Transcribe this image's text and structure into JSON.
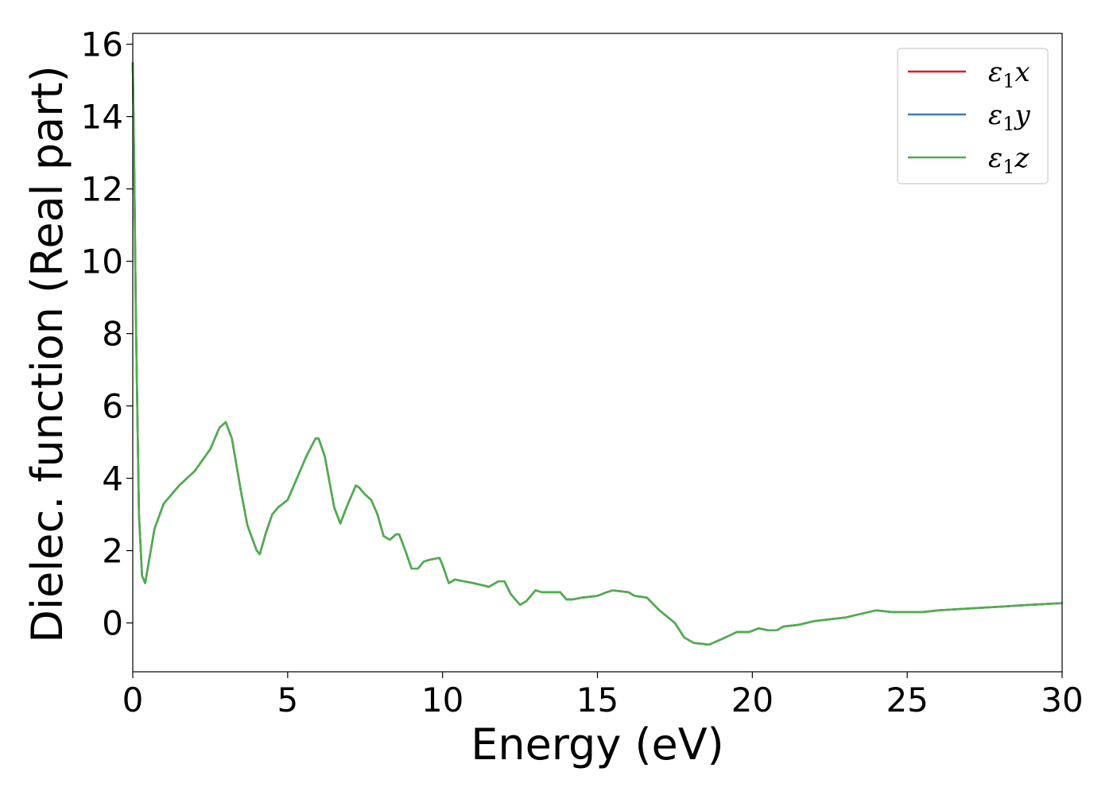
{
  "chart_data": {
    "type": "line",
    "title": "",
    "xlabel": "Energy (eV)",
    "ylabel": "Dielec. function (Real part)",
    "xlim": [
      0,
      30
    ],
    "ylim": [
      -1.35,
      16.3
    ],
    "xticks": [
      0,
      5,
      10,
      15,
      20,
      25,
      30
    ],
    "yticks": [
      0,
      2,
      4,
      6,
      8,
      10,
      12,
      14,
      16
    ],
    "grid": false,
    "legend_position": "top-right",
    "series": [
      {
        "name": "ε1x",
        "legend_main": "ε",
        "legend_sub": "1",
        "legend_var": "x",
        "color": "#e41a1c",
        "x": [
          0,
          0.05,
          0.1,
          0.2,
          0.3,
          0.4,
          0.5,
          0.7,
          1,
          1.5,
          2,
          2.5,
          2.8,
          3,
          3.2,
          3.5,
          3.7,
          4,
          4.1,
          4.3,
          4.5,
          4.7,
          5,
          5.3,
          5.6,
          5.9,
          6,
          6.2,
          6.5,
          6.7,
          6.9,
          7.2,
          7.3,
          7.5,
          7.7,
          7.9,
          8.1,
          8.3,
          8.5,
          8.6,
          8.8,
          9,
          9.2,
          9.4,
          9.6,
          9.9,
          10,
          10.2,
          10.4,
          10.7,
          11,
          11.5,
          11.8,
          12,
          12.2,
          12.5,
          12.7,
          13,
          13.2,
          13.5,
          13.8,
          14,
          14.2,
          14.5,
          15,
          15.3,
          15.5,
          16,
          16.2,
          16.6,
          17,
          17.5,
          17.8,
          18.1,
          18.6,
          19,
          19.5,
          19.9,
          20.2,
          20.5,
          20.8,
          21,
          21.5,
          22,
          23,
          23.5,
          24,
          24.5,
          25,
          25.5,
          26,
          27,
          28,
          29,
          30
        ],
        "values": [
          15.5,
          12.5,
          8.5,
          3.0,
          1.3,
          1.1,
          1.6,
          2.6,
          3.3,
          3.8,
          4.2,
          4.8,
          5.4,
          5.55,
          5.1,
          3.6,
          2.7,
          2.0,
          1.9,
          2.5,
          3.0,
          3.2,
          3.4,
          4.0,
          4.6,
          5.1,
          5.1,
          4.6,
          3.2,
          2.75,
          3.2,
          3.8,
          3.75,
          3.55,
          3.4,
          3.0,
          2.4,
          2.3,
          2.45,
          2.45,
          2.0,
          1.5,
          1.5,
          1.7,
          1.75,
          1.8,
          1.6,
          1.1,
          1.2,
          1.15,
          1.1,
          1.0,
          1.15,
          1.15,
          0.8,
          0.5,
          0.6,
          0.9,
          0.85,
          0.85,
          0.85,
          0.65,
          0.65,
          0.7,
          0.75,
          0.85,
          0.9,
          0.85,
          0.75,
          0.7,
          0.35,
          0.0,
          -0.4,
          -0.55,
          -0.6,
          -0.45,
          -0.25,
          -0.25,
          -0.15,
          -0.2,
          -0.2,
          -0.1,
          -0.05,
          0.05,
          0.15,
          0.25,
          0.35,
          0.3,
          0.3,
          0.3,
          0.35,
          0.4,
          0.45,
          0.5,
          0.55
        ]
      },
      {
        "name": "ε1y",
        "legend_main": "ε",
        "legend_sub": "1",
        "legend_var": "y",
        "color": "#377eb8",
        "x": [
          0,
          0.05,
          0.1,
          0.2,
          0.3,
          0.4,
          0.5,
          0.7,
          1,
          1.5,
          2,
          2.5,
          2.8,
          3,
          3.2,
          3.5,
          3.7,
          4,
          4.1,
          4.3,
          4.5,
          4.7,
          5,
          5.3,
          5.6,
          5.9,
          6,
          6.2,
          6.5,
          6.7,
          6.9,
          7.2,
          7.3,
          7.5,
          7.7,
          7.9,
          8.1,
          8.3,
          8.5,
          8.6,
          8.8,
          9,
          9.2,
          9.4,
          9.6,
          9.9,
          10,
          10.2,
          10.4,
          10.7,
          11,
          11.5,
          11.8,
          12,
          12.2,
          12.5,
          12.7,
          13,
          13.2,
          13.5,
          13.8,
          14,
          14.2,
          14.5,
          15,
          15.3,
          15.5,
          16,
          16.2,
          16.6,
          17,
          17.5,
          17.8,
          18.1,
          18.6,
          19,
          19.5,
          19.9,
          20.2,
          20.5,
          20.8,
          21,
          21.5,
          22,
          23,
          23.5,
          24,
          24.5,
          25,
          25.5,
          26,
          27,
          28,
          29,
          30
        ],
        "values": [
          15.5,
          12.5,
          8.5,
          3.0,
          1.3,
          1.1,
          1.6,
          2.6,
          3.3,
          3.8,
          4.2,
          4.8,
          5.4,
          5.55,
          5.1,
          3.6,
          2.7,
          2.0,
          1.9,
          2.5,
          3.0,
          3.2,
          3.4,
          4.0,
          4.6,
          5.1,
          5.1,
          4.6,
          3.2,
          2.75,
          3.2,
          3.8,
          3.75,
          3.55,
          3.4,
          3.0,
          2.4,
          2.3,
          2.45,
          2.45,
          2.0,
          1.5,
          1.5,
          1.7,
          1.75,
          1.8,
          1.6,
          1.1,
          1.2,
          1.15,
          1.1,
          1.0,
          1.15,
          1.15,
          0.8,
          0.5,
          0.6,
          0.9,
          0.85,
          0.85,
          0.85,
          0.65,
          0.65,
          0.7,
          0.75,
          0.85,
          0.9,
          0.85,
          0.75,
          0.7,
          0.35,
          0.0,
          -0.4,
          -0.55,
          -0.6,
          -0.45,
          -0.25,
          -0.25,
          -0.15,
          -0.2,
          -0.2,
          -0.1,
          -0.05,
          0.05,
          0.15,
          0.25,
          0.35,
          0.3,
          0.3,
          0.3,
          0.35,
          0.4,
          0.45,
          0.5,
          0.55
        ]
      },
      {
        "name": "ε1z",
        "legend_main": "ε",
        "legend_sub": "1",
        "legend_var": "z",
        "color": "#4daf4a",
        "x": [
          0,
          0.05,
          0.1,
          0.2,
          0.3,
          0.4,
          0.5,
          0.7,
          1,
          1.5,
          2,
          2.5,
          2.8,
          3,
          3.2,
          3.5,
          3.7,
          4,
          4.1,
          4.3,
          4.5,
          4.7,
          5,
          5.3,
          5.6,
          5.9,
          6,
          6.2,
          6.5,
          6.7,
          6.9,
          7.2,
          7.3,
          7.5,
          7.7,
          7.9,
          8.1,
          8.3,
          8.5,
          8.6,
          8.8,
          9,
          9.2,
          9.4,
          9.6,
          9.9,
          10,
          10.2,
          10.4,
          10.7,
          11,
          11.5,
          11.8,
          12,
          12.2,
          12.5,
          12.7,
          13,
          13.2,
          13.5,
          13.8,
          14,
          14.2,
          14.5,
          15,
          15.3,
          15.5,
          16,
          16.2,
          16.6,
          17,
          17.5,
          17.8,
          18.1,
          18.6,
          19,
          19.5,
          19.9,
          20.2,
          20.5,
          20.8,
          21,
          21.5,
          22,
          23,
          23.5,
          24,
          24.5,
          25,
          25.5,
          26,
          27,
          28,
          29,
          30
        ],
        "values": [
          15.5,
          12.5,
          8.5,
          3.0,
          1.3,
          1.1,
          1.6,
          2.6,
          3.3,
          3.8,
          4.2,
          4.8,
          5.4,
          5.55,
          5.1,
          3.6,
          2.7,
          2.0,
          1.9,
          2.5,
          3.0,
          3.2,
          3.4,
          4.0,
          4.6,
          5.1,
          5.1,
          4.6,
          3.2,
          2.75,
          3.2,
          3.8,
          3.75,
          3.55,
          3.4,
          3.0,
          2.4,
          2.3,
          2.45,
          2.45,
          2.0,
          1.5,
          1.5,
          1.7,
          1.75,
          1.8,
          1.6,
          1.1,
          1.2,
          1.15,
          1.1,
          1.0,
          1.15,
          1.15,
          0.8,
          0.5,
          0.6,
          0.9,
          0.85,
          0.85,
          0.85,
          0.65,
          0.65,
          0.7,
          0.75,
          0.85,
          0.9,
          0.85,
          0.75,
          0.7,
          0.35,
          0.0,
          -0.4,
          -0.55,
          -0.6,
          -0.45,
          -0.25,
          -0.25,
          -0.15,
          -0.2,
          -0.2,
          -0.1,
          -0.05,
          0.05,
          0.15,
          0.25,
          0.35,
          0.3,
          0.3,
          0.3,
          0.35,
          0.4,
          0.45,
          0.5,
          0.55
        ]
      }
    ]
  }
}
